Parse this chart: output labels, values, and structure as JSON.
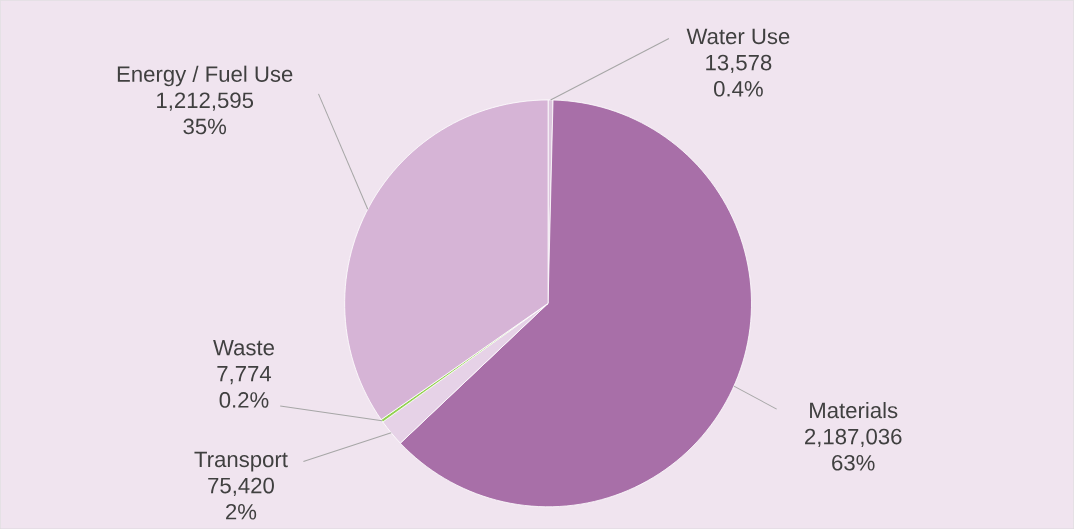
{
  "chart_data": {
    "type": "pie",
    "categories": [
      "Water Use",
      "Materials",
      "Transport",
      "Waste",
      "Energy / Fuel Use"
    ],
    "values": [
      13578,
      2187036,
      75420,
      7774,
      1212595
    ],
    "colors": [
      "#dcc6dd",
      "#a86fa8",
      "#e6d2e7",
      "#92d050",
      "#d6b4d6"
    ],
    "value_labels": [
      "13,578",
      "2,187,036",
      "75,420",
      "7,774",
      "1,212,595"
    ],
    "annotations": [
      {
        "text": "0.4%",
        "x": "Water Use"
      },
      {
        "text": "63%",
        "x": "Materials"
      },
      {
        "text": "2%",
        "x": "Transport"
      },
      {
        "text": "0.2%",
        "x": "Waste"
      },
      {
        "text": "35%",
        "x": "Energy / Fuel Use"
      }
    ]
  }
}
